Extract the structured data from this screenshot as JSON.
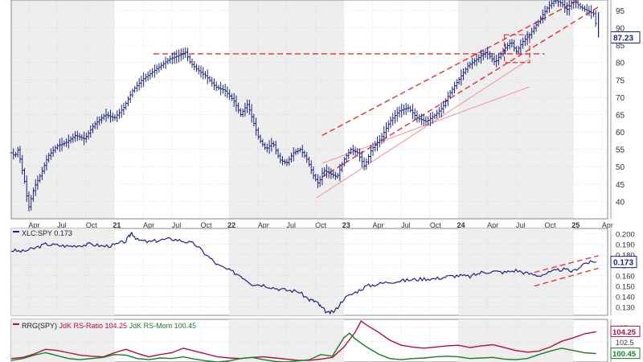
{
  "chart_data": [
    {
      "type": "bar",
      "style": "ohlc-price-bars",
      "ylim": [
        35,
        98
      ],
      "y_axis_side": "right",
      "y_ticks": [
        "40",
        "45",
        "50",
        "55",
        "60",
        "65",
        "70",
        "75",
        "80",
        "85",
        "90",
        "95"
      ],
      "last_value_label": "87.23",
      "x_ticks": [
        "Apr",
        "Jul",
        "Oct",
        "21",
        "Apr",
        "Jul",
        "Oct",
        "22",
        "Apr",
        "Jul",
        "Oct",
        "23",
        "Apr",
        "Jul",
        "Oct",
        "24",
        "Apr",
        "Jul",
        "Oct",
        "25",
        "Apr"
      ],
      "x_ticks_bold": [
        "21",
        "22",
        "23",
        "24",
        "25"
      ],
      "x_range": [
        2020.1,
        2025.3
      ],
      "shading": "alternating calendar years",
      "grid": true,
      "series": [
        {
          "x": [
            2020.1,
            2020.13,
            2020.16,
            2020.19,
            2020.22,
            2020.25,
            2020.3,
            2020.36,
            2020.42,
            2020.5,
            2020.58,
            2020.66,
            2020.74,
            2020.82,
            2020.92,
            2021.0,
            2021.08,
            2021.16,
            2021.24,
            2021.32,
            2021.4,
            2021.48,
            2021.56,
            2021.62,
            2021.66,
            2021.72,
            2021.8,
            2021.88,
            2021.96,
            2022.04,
            2022.1,
            2022.16,
            2022.22,
            2022.26,
            2022.32,
            2022.38,
            2022.44,
            2022.5,
            2022.56,
            2022.62,
            2022.68,
            2022.74,
            2022.78,
            2022.82,
            2022.88,
            2022.94,
            2023.0,
            2023.06,
            2023.12,
            2023.18,
            2023.24,
            2023.32,
            2023.4,
            2023.48,
            2023.56,
            2023.64,
            2023.72,
            2023.8,
            2023.86,
            2023.92,
            2024.0,
            2024.08,
            2024.16,
            2024.24,
            2024.32,
            2024.4,
            2024.46,
            2024.5,
            2024.56,
            2024.62,
            2024.66,
            2024.72,
            2024.78,
            2024.84,
            2024.9,
            2024.94,
            2025.0,
            2025.06,
            2025.12,
            2025.18,
            2025.22
          ],
          "values": [
            54,
            53,
            55,
            50,
            45,
            38,
            44,
            48,
            53,
            56,
            57,
            59,
            58,
            62,
            65,
            64,
            67,
            72,
            75,
            77,
            79,
            81,
            82,
            83,
            80,
            78,
            76,
            73,
            72,
            69,
            65,
            68,
            62,
            58,
            55,
            57,
            52,
            51,
            54,
            55,
            52,
            47,
            45,
            49,
            48,
            47,
            52,
            55,
            54,
            50,
            55,
            58,
            63,
            66,
            67,
            64,
            63,
            65,
            67,
            71,
            75,
            79,
            81,
            83,
            80,
            84,
            86,
            83,
            86,
            88,
            90,
            93,
            96,
            98,
            97,
            95,
            98,
            96,
            95,
            94,
            87.23
          ]
        }
      ],
      "reference_lines": [
        {
          "kind": "horizontal-resistance",
          "value": 82.5,
          "x_start": 2021.34,
          "x_end": 2024.75
        },
        {
          "kind": "upper-channel",
          "x_start": 2022.81,
          "y_start": 59,
          "x_end": 2025.22,
          "y_end": 101
        },
        {
          "kind": "lower-channel",
          "x_start": 2022.81,
          "y_start": 47,
          "x_end": 2025.22,
          "y_end": 96
        },
        {
          "kind": "outer-lower-channel",
          "x_start": 2022.81,
          "y_start": 51,
          "x_end": 2024.62,
          "y_end": 73
        },
        {
          "kind": "outer-upper-channel",
          "x_start": 2022.76,
          "y_start": 41,
          "x_end": 2024.62,
          "y_end": 81
        },
        {
          "kind": "range-box",
          "x_start": 2024.4,
          "x_end": 2024.62,
          "y_top": 88,
          "y_bottom": 80
        }
      ]
    },
    {
      "type": "line",
      "legend": "XLC:SPY 0.173",
      "ylim": [
        0.122,
        0.205
      ],
      "y_ticks": [
        "0.200",
        "0.190",
        "0.180",
        "0.170",
        "0.160",
        "0.150",
        "0.140",
        "0.130"
      ],
      "last_value_label": "0.173",
      "grid": true,
      "series": [
        {
          "name": "XLC:SPY",
          "x": [
            2020.1,
            2020.2,
            2020.3,
            2020.4,
            2020.5,
            2020.6,
            2020.7,
            2020.8,
            2020.9,
            2021.0,
            2021.1,
            2021.15,
            2021.2,
            2021.3,
            2021.4,
            2021.5,
            2021.6,
            2021.7,
            2021.8,
            2021.9,
            2022.0,
            2022.1,
            2022.2,
            2022.3,
            2022.4,
            2022.5,
            2022.6,
            2022.7,
            2022.76,
            2022.8,
            2022.86,
            2022.92,
            2023.0,
            2023.1,
            2023.2,
            2023.3,
            2023.4,
            2023.5,
            2023.6,
            2023.7,
            2023.8,
            2023.9,
            2024.0,
            2024.1,
            2024.2,
            2024.3,
            2024.4,
            2024.5,
            2024.6,
            2024.7,
            2024.8,
            2024.9,
            2025.0,
            2025.1,
            2025.2
          ],
          "values": [
            0.184,
            0.183,
            0.186,
            0.19,
            0.189,
            0.188,
            0.189,
            0.19,
            0.188,
            0.189,
            0.193,
            0.201,
            0.194,
            0.192,
            0.194,
            0.195,
            0.193,
            0.19,
            0.18,
            0.17,
            0.165,
            0.16,
            0.152,
            0.151,
            0.148,
            0.146,
            0.145,
            0.137,
            0.135,
            0.13,
            0.124,
            0.126,
            0.138,
            0.144,
            0.15,
            0.152,
            0.154,
            0.155,
            0.156,
            0.157,
            0.157,
            0.159,
            0.16,
            0.159,
            0.163,
            0.164,
            0.163,
            0.165,
            0.162,
            0.16,
            0.163,
            0.166,
            0.164,
            0.172,
            0.173
          ]
        }
      ],
      "reference_lines": [
        {
          "kind": "upper-channel",
          "x_start": 2024.66,
          "y_start": 0.163,
          "x_end": 2025.22,
          "y_end": 0.179
        },
        {
          "kind": "lower-channel",
          "x_start": 2024.66,
          "y_start": 0.15,
          "x_end": 2025.22,
          "y_end": 0.167
        }
      ]
    },
    {
      "type": "line",
      "legend": {
        "prefix": "RRG(SPY)",
        "ratio_text": "JdK RS-Ratio 104.25",
        "mom_text": "JdK RS-Mom 100.45"
      },
      "ylim": [
        99.0,
        106.4
      ],
      "y_ticks": [
        "105",
        "102.5"
      ],
      "last_value_labels": [
        "104.25",
        "100.45"
      ],
      "grid": true,
      "series": [
        {
          "name": "JdK RS-Ratio",
          "color": "#b0103a",
          "x": [
            2020.1,
            2020.2,
            2020.3,
            2020.4,
            2020.5,
            2020.6,
            2020.7,
            2020.8,
            2020.9,
            2021.0,
            2021.1,
            2021.2,
            2021.3,
            2021.4,
            2021.5,
            2021.6,
            2021.7,
            2021.8,
            2021.9,
            2022.0,
            2022.1,
            2022.2,
            2022.3,
            2022.4,
            2022.5,
            2022.6,
            2022.7,
            2022.8,
            2022.9,
            2023.0,
            2023.1,
            2023.15,
            2023.2,
            2023.3,
            2023.4,
            2023.5,
            2023.6,
            2023.7,
            2023.8,
            2023.9,
            2024.0,
            2024.1,
            2024.2,
            2024.3,
            2024.4,
            2024.5,
            2024.6,
            2024.7,
            2024.8,
            2024.9,
            2025.0,
            2025.1,
            2025.2
          ],
          "values": [
            99.6,
            99.8,
            100.4,
            101.2,
            101.0,
            100.6,
            100.2,
            100.0,
            99.9,
            100.6,
            101.2,
            100.5,
            99.9,
            100.3,
            100.6,
            101.4,
            100.9,
            100.4,
            99.9,
            99.7,
            99.6,
            99.8,
            99.9,
            99.7,
            99.5,
            99.3,
            99.3,
            99.5,
            99.8,
            101.6,
            104.2,
            106.1,
            105.4,
            104.2,
            102.8,
            101.9,
            101.6,
            101.4,
            101.6,
            101.8,
            101.9,
            101.5,
            101.8,
            102.0,
            101.5,
            101.0,
            100.7,
            100.9,
            101.6,
            102.6,
            103.2,
            103.9,
            104.25
          ]
        },
        {
          "name": "JdK RS-Mom",
          "color": "#1c7a2a",
          "x": [
            2020.1,
            2020.2,
            2020.3,
            2020.4,
            2020.5,
            2020.6,
            2020.7,
            2020.8,
            2020.9,
            2021.0,
            2021.1,
            2021.2,
            2021.3,
            2021.4,
            2021.5,
            2021.6,
            2021.7,
            2021.8,
            2021.9,
            2022.0,
            2022.1,
            2022.2,
            2022.3,
            2022.4,
            2022.5,
            2022.6,
            2022.7,
            2022.8,
            2022.9,
            2023.0,
            2023.05,
            2023.1,
            2023.2,
            2023.3,
            2023.4,
            2023.5,
            2023.6,
            2023.7,
            2023.8,
            2023.9,
            2024.0,
            2024.1,
            2024.2,
            2024.3,
            2024.4,
            2024.5,
            2024.6,
            2024.7,
            2024.8,
            2024.9,
            2025.0,
            2025.1,
            2025.2
          ],
          "values": [
            99.3,
            99.6,
            100.2,
            100.6,
            100.1,
            99.6,
            99.4,
            99.6,
            99.8,
            100.3,
            100.2,
            99.6,
            99.4,
            99.7,
            99.6,
            99.9,
            99.5,
            99.2,
            99.0,
            99.2,
            99.6,
            99.8,
            99.4,
            99.1,
            99.0,
            99.2,
            99.4,
            100.3,
            100.0,
            103.2,
            104.0,
            103.0,
            101.6,
            100.4,
            99.6,
            99.4,
            99.6,
            99.7,
            99.9,
            100.0,
            99.9,
            99.6,
            99.7,
            99.8,
            99.5,
            99.4,
            99.6,
            100.3,
            100.9,
            101.4,
            101.0,
            100.6,
            100.45
          ]
        }
      ]
    }
  ]
}
